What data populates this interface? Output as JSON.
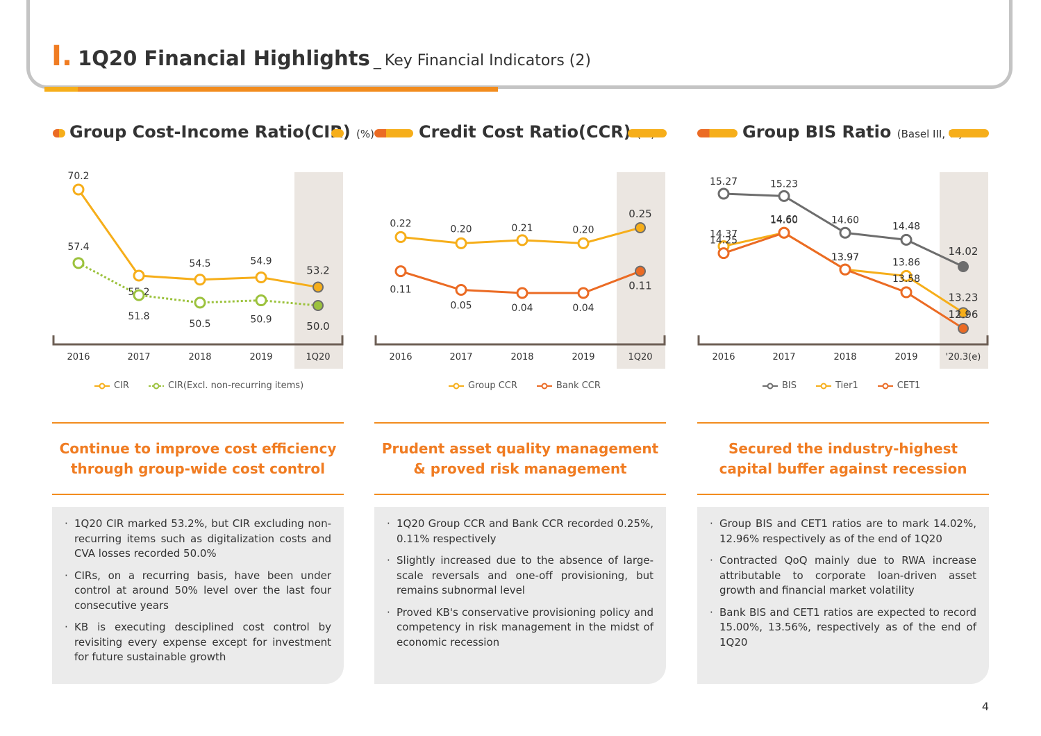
{
  "header": {
    "roman": "I.",
    "title": "1Q20 Financial Highlights",
    "separator": "_",
    "subtitle": "Key Financial Indicators (2)"
  },
  "panels": [
    {
      "title": "Group Cost-Income Ratio(CIR)",
      "unit": "(%)",
      "headline_line1": "Continue to improve cost efficiency",
      "headline_line2": "through group-wide cost control",
      "bullets": [
        "1Q20 CIR marked 53.2%, but CIR excluding non-recurring items such as digitalization costs and CVA losses recorded 50.0%",
        "CIRs, on a recurring basis, have been under control at around 50% level over the last four consecutive years",
        "KB is executing desciplined cost control by revisiting every expense except for investment for future sustainable growth"
      ]
    },
    {
      "title": "Credit Cost Ratio(CCR)",
      "unit": "(%)",
      "headline_line1": "Prudent asset quality management",
      "headline_line2": "& proved risk management",
      "bullets": [
        "1Q20 Group CCR and Bank CCR recorded 0.25%, 0.11% respectively",
        "Slightly increased due to the absence of large-scale reversals and one-off provisioning, but remains subnormal level",
        "Proved KB's conservative provisioning policy and competency in risk management in the midst of economic recession"
      ]
    },
    {
      "title": "Group BIS Ratio",
      "unit": "(Basel III, %)",
      "headline_line1": "Secured the industry-highest",
      "headline_line2": "capital buffer against recession",
      "bullets": [
        "Group BIS and CET1 ratios are to mark 14.02%, 12.96% respectively as of the end of 1Q20",
        "Contracted QoQ mainly due to RWA increase attributable to corporate loan-driven asset growth and financial market volatility",
        "Bank BIS and CET1 ratios are expected to record 15.00%, 13.56%, respectively as of the end of 1Q20"
      ]
    }
  ],
  "chart_data": [
    {
      "type": "line",
      "categories": [
        "2016",
        "2017",
        "2018",
        "2019",
        "1Q20"
      ],
      "series": [
        {
          "name": "CIR",
          "values": [
            70.2,
            55.2,
            54.5,
            54.9,
            53.2
          ],
          "color": "#f6ae1a",
          "labels": [
            "70.2",
            "55.2",
            "54.5",
            "54.9",
            "53.2"
          ]
        },
        {
          "name": "CIR(Excl. non-recurring items)",
          "values": [
            57.4,
            51.8,
            50.5,
            50.9,
            50.0
          ],
          "color": "#9cc23d",
          "dashed": true,
          "labels": [
            "57.4",
            "51.8",
            "50.5",
            "50.9",
            "50.0"
          ]
        }
      ],
      "highlight_last": true
    },
    {
      "type": "line",
      "categories": [
        "2016",
        "2017",
        "2018",
        "2019",
        "1Q20"
      ],
      "series": [
        {
          "name": "Group CCR",
          "values": [
            0.22,
            0.2,
            0.21,
            0.2,
            0.25
          ],
          "color": "#f6ae1a",
          "labels": [
            "0.22",
            "0.20",
            "0.21",
            "0.20",
            "0.25"
          ]
        },
        {
          "name": "Bank CCR",
          "values": [
            0.11,
            0.05,
            0.04,
            0.04,
            0.11
          ],
          "color": "#eb6b24",
          "labels": [
            "0.11",
            "0.05",
            "0.04",
            "0.04",
            "0.11"
          ]
        }
      ],
      "highlight_last": true
    },
    {
      "type": "line",
      "categories": [
        "2016",
        "2017",
        "2018",
        "2019",
        "'20.3(e)"
      ],
      "series": [
        {
          "name": "BIS",
          "values": [
            15.27,
            15.23,
            14.6,
            14.48,
            14.02
          ],
          "color": "#6d6d6d",
          "labels": [
            "15.27",
            "15.23",
            "14.60",
            "14.48",
            "14.02"
          ]
        },
        {
          "name": "Tier1",
          "values": [
            14.37,
            14.6,
            13.97,
            13.86,
            13.23
          ],
          "color": "#f6ae1a",
          "labels": [
            "14.37",
            "14.60",
            "13.97",
            "13.86",
            "13.23"
          ]
        },
        {
          "name": "CET1",
          "values": [
            14.25,
            14.6,
            13.97,
            13.58,
            12.96
          ],
          "color": "#eb6b24",
          "labels": [
            "14.25",
            "14.60",
            "13.97",
            "13.58",
            "12.96"
          ]
        }
      ],
      "highlight_last": true
    }
  ],
  "page_number": "4"
}
